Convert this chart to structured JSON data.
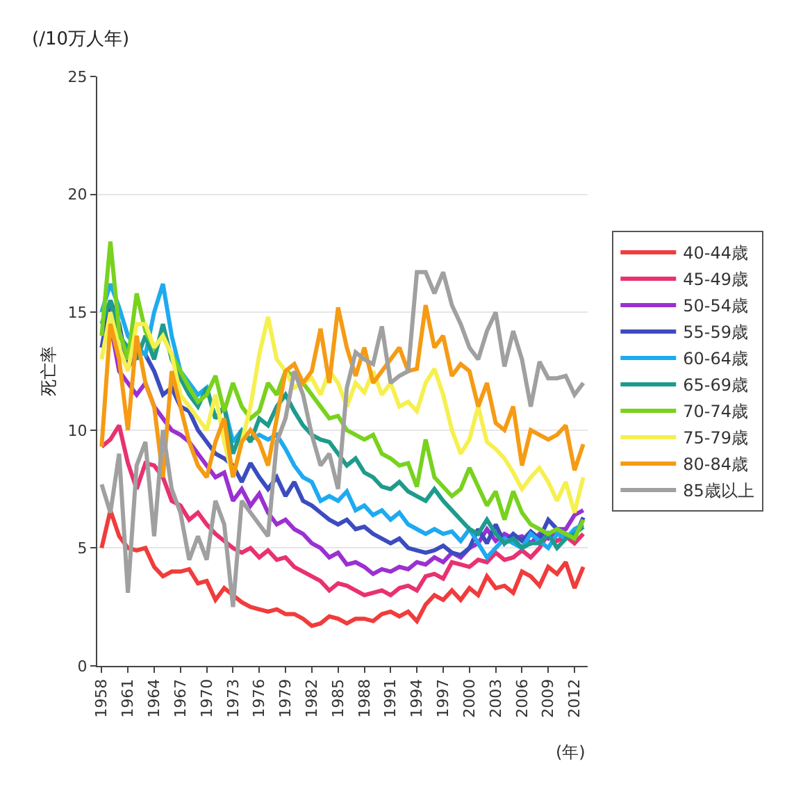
{
  "chart_data": {
    "type": "line",
    "ylabel": "死亡率",
    "xlabel": "(年)",
    "annotations": [
      "(/10万人年)"
    ],
    "xlim": [
      1957.5,
      2013.5
    ],
    "xticks": [
      1958,
      1961,
      1964,
      1967,
      1970,
      1973,
      1976,
      1979,
      1982,
      1985,
      1988,
      1991,
      1994,
      1997,
      2000,
      2003,
      2006,
      2009,
      2012
    ],
    "ylim": [
      0,
      25
    ],
    "yticks": [
      0,
      5,
      10,
      15,
      20,
      25
    ],
    "grid": "y",
    "legend": "right",
    "marker": "none",
    "line_style": "solid",
    "x": [
      1958,
      1959,
      1960,
      1961,
      1962,
      1963,
      1964,
      1965,
      1966,
      1967,
      1968,
      1969,
      1970,
      1971,
      1972,
      1973,
      1974,
      1975,
      1976,
      1977,
      1978,
      1979,
      1980,
      1981,
      1982,
      1983,
      1984,
      1985,
      1986,
      1987,
      1988,
      1989,
      1990,
      1991,
      1992,
      1993,
      1994,
      1995,
      1996,
      1997,
      1998,
      1999,
      2000,
      2001,
      2002,
      2003,
      2004,
      2005,
      2006,
      2007,
      2008,
      2009,
      2010,
      2011,
      2012,
      2013
    ],
    "series": [
      {
        "name": "40-44歳",
        "color": "#f03c3c",
        "values": [
          5.0,
          6.6,
          5.5,
          5.0,
          4.9,
          5.0,
          4.2,
          3.8,
          4.0,
          4.0,
          4.1,
          3.5,
          3.6,
          2.8,
          3.3,
          3.0,
          2.7,
          2.5,
          2.4,
          2.3,
          2.4,
          2.2,
          2.2,
          2.0,
          1.7,
          1.8,
          2.1,
          2.0,
          1.8,
          2.0,
          2.0,
          1.9,
          2.2,
          2.3,
          2.1,
          2.3,
          1.9,
          2.6,
          3.0,
          2.8,
          3.2,
          2.8,
          3.3,
          3.0,
          3.8,
          3.3,
          3.4,
          3.1,
          4.0,
          3.8,
          3.4,
          4.2,
          3.9,
          4.4,
          3.3,
          4.2
        ]
      },
      {
        "name": "45-49歳",
        "color": "#e8326e",
        "values": [
          9.3,
          9.6,
          10.2,
          8.6,
          7.5,
          8.6,
          8.5,
          8.0,
          7.0,
          6.8,
          6.2,
          6.5,
          6.0,
          5.6,
          5.3,
          5.0,
          4.8,
          5.0,
          4.6,
          4.9,
          4.5,
          4.6,
          4.2,
          4.0,
          3.8,
          3.6,
          3.2,
          3.5,
          3.4,
          3.2,
          3.0,
          3.1,
          3.2,
          3.0,
          3.3,
          3.4,
          3.2,
          3.8,
          3.9,
          3.7,
          4.4,
          4.3,
          4.2,
          4.5,
          4.4,
          4.8,
          4.5,
          4.6,
          4.9,
          4.6,
          5.0,
          5.6,
          5.3,
          5.5,
          5.2,
          5.6
        ]
      },
      {
        "name": "50-54歳",
        "color": "#9b30d0",
        "values": [
          13.5,
          14.5,
          12.5,
          12.0,
          11.5,
          12.0,
          11.0,
          10.5,
          10.0,
          9.8,
          9.5,
          9.0,
          8.5,
          8.0,
          8.2,
          7.0,
          7.5,
          6.8,
          7.3,
          6.5,
          6.0,
          6.2,
          5.8,
          5.6,
          5.2,
          5.0,
          4.6,
          4.8,
          4.3,
          4.4,
          4.2,
          3.9,
          4.1,
          4.0,
          4.2,
          4.1,
          4.4,
          4.3,
          4.6,
          4.4,
          4.8,
          4.6,
          5.0,
          5.2,
          5.8,
          5.3,
          5.6,
          5.4,
          5.5,
          5.2,
          5.6,
          5.4,
          5.8,
          5.8,
          6.4,
          6.6
        ]
      },
      {
        "name": "55-59歳",
        "color": "#3c4cc0",
        "values": [
          13.5,
          15.5,
          14.5,
          12.6,
          13.5,
          13.2,
          12.5,
          11.5,
          11.8,
          11.0,
          10.8,
          10.0,
          9.5,
          9.0,
          8.8,
          8.5,
          7.8,
          8.6,
          8.0,
          7.5,
          8.0,
          7.2,
          7.8,
          7.0,
          6.8,
          6.5,
          6.2,
          6.0,
          6.2,
          5.8,
          5.9,
          5.6,
          5.4,
          5.2,
          5.4,
          5.0,
          4.9,
          4.8,
          4.9,
          5.1,
          4.8,
          4.7,
          5.0,
          5.8,
          5.2,
          6.0,
          5.2,
          5.6,
          5.3,
          5.7,
          5.4,
          6.2,
          5.8,
          5.6,
          5.4,
          6.3
        ]
      },
      {
        "name": "60-64歳",
        "color": "#1eaaf0",
        "values": [
          15.0,
          16.2,
          15.2,
          14.0,
          13.5,
          13.2,
          15.0,
          16.2,
          14.0,
          12.5,
          12.0,
          11.5,
          11.8,
          10.5,
          11.0,
          9.5,
          10.0,
          9.6,
          9.8,
          9.6,
          9.8,
          9.2,
          8.5,
          8.0,
          7.8,
          7.0,
          7.2,
          7.0,
          7.4,
          6.6,
          6.8,
          6.4,
          6.6,
          6.2,
          6.5,
          6.0,
          5.8,
          5.6,
          5.8,
          5.6,
          5.7,
          5.3,
          5.8,
          5.2,
          4.6,
          5.0,
          5.4,
          5.2,
          5.0,
          5.6,
          5.3,
          5.0,
          5.6,
          5.4,
          5.8,
          6.0
        ]
      },
      {
        "name": "65-69歳",
        "color": "#1e9b8c",
        "values": [
          14.5,
          15.5,
          14.0,
          13.5,
          13.0,
          14.0,
          13.0,
          14.5,
          13.0,
          12.2,
          11.5,
          11.0,
          11.8,
          10.5,
          11.0,
          9.0,
          10.0,
          9.5,
          10.5,
          10.2,
          11.0,
          11.5,
          10.8,
          10.2,
          9.8,
          9.6,
          9.5,
          9.0,
          8.5,
          8.8,
          8.2,
          8.0,
          7.6,
          7.5,
          7.8,
          7.4,
          7.2,
          7.0,
          7.5,
          7.0,
          6.6,
          6.2,
          5.8,
          5.6,
          6.2,
          5.6,
          5.2,
          5.4,
          5.0,
          5.2,
          5.2,
          5.6,
          5.0,
          5.4,
          5.6,
          5.9
        ]
      },
      {
        "name": "70-74歳",
        "color": "#78d21e",
        "values": [
          14.0,
          18.0,
          14.2,
          13.0,
          15.8,
          14.2,
          13.5,
          14.0,
          13.2,
          12.5,
          11.8,
          11.2,
          11.5,
          12.3,
          10.8,
          12.0,
          11.0,
          10.5,
          10.8,
          12.0,
          11.5,
          12.5,
          12.3,
          12.0,
          11.5,
          11.0,
          10.5,
          10.6,
          10.0,
          9.8,
          9.6,
          9.8,
          9.0,
          8.8,
          8.5,
          8.6,
          7.6,
          9.6,
          8.0,
          7.6,
          7.2,
          7.5,
          8.4,
          7.6,
          6.8,
          7.4,
          6.2,
          7.4,
          6.5,
          6.0,
          5.8,
          5.6,
          5.8,
          5.6,
          5.4,
          6.2
        ]
      },
      {
        "name": "75-79歳",
        "color": "#f5f050",
        "values": [
          13.0,
          15.0,
          13.5,
          12.5,
          14.5,
          14.5,
          13.5,
          14.0,
          13.2,
          11.5,
          11.0,
          10.5,
          10.0,
          11.5,
          9.5,
          8.0,
          9.5,
          11.0,
          13.2,
          14.8,
          13.0,
          12.5,
          11.8,
          12.0,
          12.2,
          11.5,
          12.5,
          12.0,
          11.0,
          12.0,
          11.6,
          12.5,
          11.5,
          12.0,
          11.0,
          11.2,
          10.8,
          12.0,
          12.6,
          11.5,
          10.0,
          9.0,
          9.6,
          11.0,
          9.5,
          9.2,
          8.8,
          8.2,
          7.5,
          8.0,
          8.4,
          7.8,
          7.0,
          7.8,
          6.5,
          8.0
        ]
      },
      {
        "name": "80-84歳",
        "color": "#f59b14",
        "values": [
          9.3,
          14.5,
          13.0,
          10.0,
          14.0,
          12.0,
          11.0,
          8.0,
          12.5,
          11.0,
          9.5,
          8.5,
          8.0,
          9.5,
          10.5,
          8.0,
          9.5,
          10.0,
          9.5,
          8.5,
          10.5,
          12.5,
          12.8,
          12.0,
          12.5,
          14.3,
          12.0,
          15.2,
          13.5,
          12.3,
          13.5,
          12.0,
          12.5,
          13.0,
          13.5,
          12.5,
          12.6,
          15.3,
          13.5,
          14.0,
          12.3,
          12.8,
          12.5,
          11.0,
          12.0,
          10.3,
          10.0,
          11.0,
          8.5,
          10.0,
          9.8,
          9.6,
          9.8,
          10.2,
          8.3,
          9.4
        ]
      },
      {
        "name": "85歳以上",
        "color": "#a0a0a0",
        "values": [
          7.7,
          6.5,
          9.0,
          3.1,
          8.5,
          9.5,
          5.5,
          10.0,
          7.5,
          6.5,
          4.5,
          5.5,
          4.5,
          7.0,
          6.0,
          2.5,
          7.0,
          6.5,
          6.0,
          5.5,
          9.5,
          10.5,
          12.5,
          11.5,
          9.8,
          8.5,
          9.0,
          7.5,
          11.8,
          13.3,
          13.0,
          12.8,
          14.4,
          12.0,
          12.3,
          12.5,
          16.7,
          16.7,
          15.8,
          16.7,
          15.3,
          14.5,
          13.5,
          13.0,
          14.2,
          15.0,
          12.7,
          14.2,
          13.0,
          11.0,
          12.9,
          12.2,
          12.2,
          12.3,
          11.5,
          12.0
        ]
      }
    ]
  }
}
